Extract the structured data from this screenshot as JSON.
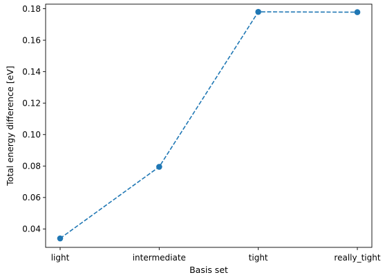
{
  "chart_data": {
    "type": "line",
    "title": "",
    "xlabel": "Basis set",
    "ylabel": "Total energy difference [eV]",
    "categories": [
      "light",
      "intermediate",
      "tight",
      "really_tight"
    ],
    "series": [
      {
        "values": [
          0.034,
          0.0795,
          0.178,
          0.1778
        ],
        "color": "#1f77b4",
        "line_style": "dashed",
        "marker": "circle"
      }
    ],
    "ylim": [
      0.0283,
      0.1829
    ],
    "y_ticks": [
      0.04,
      0.06,
      0.08,
      0.1,
      0.12,
      0.14,
      0.16,
      0.18
    ],
    "y_tick_labels": [
      "0.04",
      "0.06",
      "0.08",
      "0.10",
      "0.12",
      "0.14",
      "0.16",
      "0.18"
    ],
    "grid": false,
    "legend": false
  }
}
